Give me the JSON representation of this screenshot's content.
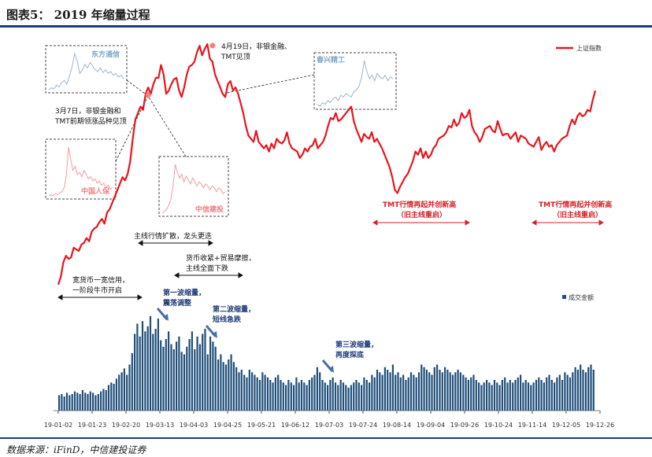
{
  "header": {
    "title": "图表5： 2019 年缩量过程"
  },
  "footer": {
    "source": "数据来源：iFinD，中信建投证券"
  },
  "chart_data": [
    {
      "type": "line",
      "series": [
        {
          "name": "上证指数",
          "color": "#e8151e",
          "values": [
            2465,
            2490,
            2535,
            2555,
            2545,
            2550,
            2580,
            2575,
            2570,
            2590,
            2595,
            2610,
            2600,
            2630,
            2640,
            2645,
            2660,
            2670,
            2655,
            2690,
            2700,
            2720,
            2740,
            2760,
            2780,
            2800,
            2790,
            2810,
            2850,
            2920,
            2980,
            3000,
            3020,
            3010,
            3060,
            3080,
            3060,
            3090,
            3110,
            3110,
            3150,
            3120,
            3060,
            3070,
            3090,
            3105,
            3110,
            3070,
            3050,
            3080,
            3120,
            3145,
            3150,
            3160,
            3190,
            3210,
            3180,
            3200,
            3215,
            3170,
            3160,
            3120,
            3100,
            3080,
            3060,
            3050,
            3090,
            3100,
            3070,
            3080,
            3060,
            3030,
            3000,
            2960,
            2930,
            2920,
            2910,
            2945,
            2910,
            2900,
            2890,
            2900,
            2880,
            2905,
            2890,
            2920,
            2910,
            2905,
            2915,
            2940,
            2905,
            2890,
            2885,
            2880,
            2860,
            2870,
            2890,
            2880,
            2895,
            2900,
            2920,
            2890,
            2900,
            2910,
            2930,
            2960,
            2985,
            2980,
            3000,
            2975,
            2980,
            2990,
            3000,
            3010,
            3020,
            2975,
            2950,
            2930,
            2910,
            2935,
            2925,
            2920,
            2940,
            2910,
            2920,
            2905,
            2890,
            2870,
            2850,
            2830,
            2800,
            2760,
            2750,
            2770,
            2785,
            2800,
            2810,
            2830,
            2850,
            2880,
            2870,
            2890,
            2860,
            2880,
            2860,
            2870,
            2890,
            2900,
            2920,
            2925,
            2930,
            2940,
            2960,
            2955,
            2980,
            2960,
            2970,
            3000,
            2985,
            2990,
            3010,
            2960,
            2940,
            2930,
            2910,
            2925,
            2950,
            2955,
            2960,
            2945,
            2940,
            2975,
            2950,
            2930,
            2935,
            2935,
            2920,
            2930,
            2940,
            2910,
            2930,
            2925,
            2920,
            2905,
            2900,
            2895,
            2910,
            2925,
            2885,
            2900,
            2910,
            2895,
            2900,
            2880,
            2900,
            2910,
            2920,
            2925,
            2930,
            2960,
            2980,
            2965,
            2990,
            3000,
            2990,
            2995,
            3010,
            3005,
            3040,
            3070
          ]
        }
      ]
    },
    {
      "type": "bar",
      "series": [
        {
          "name": "成交金额",
          "color": "#1f4e79",
          "values": [
            12,
            13,
            11,
            14,
            12,
            13,
            15,
            14,
            13,
            16,
            14,
            13,
            15,
            14,
            12,
            13,
            15,
            17,
            16,
            20,
            22,
            21,
            25,
            28,
            30,
            33,
            28,
            36,
            45,
            60,
            68,
            58,
            70,
            62,
            66,
            74,
            60,
            64,
            72,
            55,
            50,
            56,
            62,
            52,
            48,
            54,
            58,
            46,
            44,
            50,
            56,
            62,
            48,
            58,
            52,
            60,
            64,
            44,
            58,
            54,
            50,
            40,
            44,
            38,
            36,
            40,
            44,
            38,
            34,
            30,
            32,
            28,
            26,
            32,
            30,
            28,
            26,
            24,
            30,
            28,
            26,
            24,
            22,
            26,
            28,
            24,
            22,
            20,
            24,
            22,
            20,
            26,
            22,
            24,
            22,
            20,
            24,
            26,
            28,
            34,
            30,
            24,
            22,
            20,
            24,
            26,
            22,
            20,
            24,
            22,
            20,
            18,
            20,
            22,
            24,
            22,
            20,
            26,
            24,
            22,
            28,
            26,
            32,
            30,
            28,
            34,
            32,
            30,
            36,
            28,
            30,
            26,
            28,
            24,
            26,
            30,
            28,
            26,
            30,
            36,
            34,
            32,
            30,
            28,
            34,
            36,
            32,
            30,
            34,
            32,
            30,
            28,
            30,
            32,
            30,
            28,
            26,
            24,
            26,
            28,
            24,
            22,
            20,
            22,
            24,
            22,
            20,
            24,
            22,
            20,
            24,
            26,
            22,
            24,
            22,
            24,
            26,
            28,
            22,
            24,
            22,
            20,
            22,
            24,
            26,
            24,
            22,
            26,
            28,
            24,
            22,
            26,
            28,
            24,
            30,
            28,
            26,
            30,
            34,
            32,
            36,
            32,
            30,
            34,
            36,
            32
          ]
        }
      ]
    }
  ],
  "x_ticks": [
    "19-01-02",
    "19-01-23",
    "19-02-20",
    "19-03-13",
    "19-04-03",
    "19-04-25",
    "19-05-21",
    "19-06-12",
    "19-07-03",
    "19-07-24",
    "19-08-14",
    "19-09-04",
    "19-09-26",
    "19-10-24",
    "19-11-14",
    "19-12-05",
    "19-12-26"
  ],
  "annotations": {
    "mar7": [
      "3月7日，非银金融和",
      "TMT前期领涨品种见顶"
    ],
    "apr19": [
      "4月19日，非银金融、",
      "TMT见顶"
    ],
    "loose": [
      "宽货币一宽信用，",
      "一阶段牛市开启"
    ],
    "expand": "主线行情扩散，龙头更迭",
    "tighten": [
      "货币收紧+贸易摩擦，",
      "主线全面下跌"
    ],
    "tmt1": [
      "TMT行情再起并创新高",
      "（旧主线重启）"
    ],
    "tmt2": [
      "TMT行情再起并创新高",
      "（旧主线重启）"
    ],
    "wave1": [
      "第一波缩量，",
      "震荡调整"
    ],
    "wave2": [
      "第二波缩量，",
      "短线急跌"
    ],
    "wave3": [
      "第三波缩量，",
      "再度探底"
    ]
  },
  "insets": {
    "dongfang": "东方通信",
    "renbao": "中国人保",
    "zhongxin": "中信建投",
    "chunxing": "春兴精工"
  },
  "inset_series": {
    "dongfang": [
      30,
      32,
      31,
      35,
      33,
      38,
      40,
      36,
      45,
      55,
      70,
      62,
      48,
      52,
      58,
      54,
      60,
      56,
      52,
      50,
      54,
      49,
      52,
      48,
      50,
      46,
      48,
      44,
      46,
      42
    ],
    "renbao": [
      20,
      21,
      20,
      22,
      21,
      23,
      24,
      28,
      40,
      66,
      54,
      44,
      48,
      40,
      42,
      38,
      44,
      40,
      36,
      38,
      34,
      36,
      32,
      34,
      30,
      32,
      28,
      30,
      26,
      28
    ],
    "zhongxin": [
      20,
      22,
      24,
      28,
      34,
      48,
      70,
      62,
      56,
      60,
      52,
      58,
      54,
      50,
      56,
      52,
      48,
      52,
      50,
      46,
      50,
      48,
      44,
      48,
      46,
      42,
      46,
      44,
      40,
      42
    ],
    "chunxing": [
      30,
      28,
      32,
      30,
      34,
      32,
      36,
      38,
      34,
      40,
      38,
      42,
      40,
      38,
      44,
      46,
      50,
      60,
      78,
      66,
      58,
      62,
      56,
      64,
      60,
      58,
      62,
      56,
      60,
      58
    ]
  }
}
